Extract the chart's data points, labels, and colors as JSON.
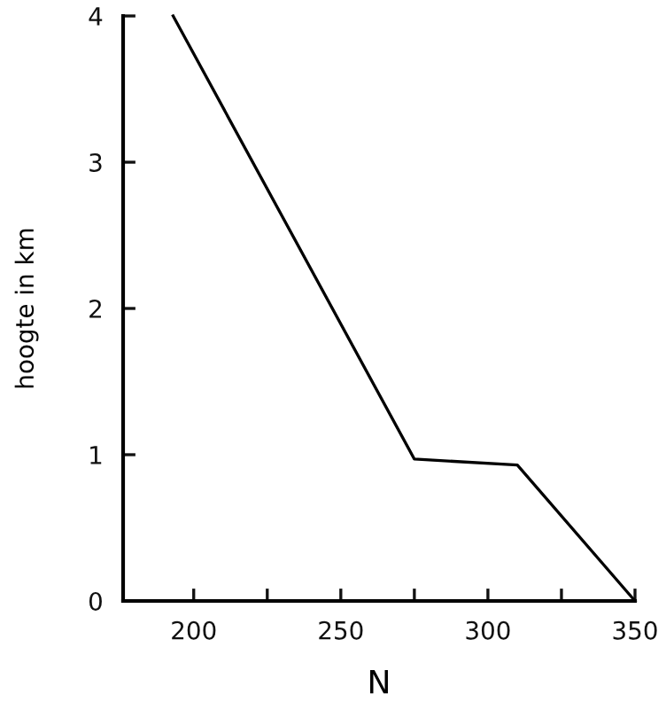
{
  "chart_data": {
    "type": "line",
    "xlabel": "N",
    "ylabel": "hoogte in km",
    "series": [
      {
        "color": "#000000",
        "x": [
          193,
          275,
          310,
          350
        ],
        "values": [
          4,
          0.97,
          0.93,
          0
        ]
      }
    ],
    "xlim": [
      176,
      350
    ],
    "xticks": [
      {
        "value": 200,
        "label": "200"
      },
      {
        "value": 225,
        "label": null
      },
      {
        "value": 250,
        "label": "250"
      },
      {
        "value": 275,
        "label": null
      },
      {
        "value": 300,
        "label": "300"
      },
      {
        "value": 325,
        "label": null
      },
      {
        "value": 350,
        "label": "350"
      }
    ],
    "ylim": [
      0,
      4
    ],
    "yticks": [
      0,
      1,
      2,
      3,
      4
    ],
    "grid": false,
    "legend": false,
    "marker": "none",
    "line_style": "solid"
  }
}
